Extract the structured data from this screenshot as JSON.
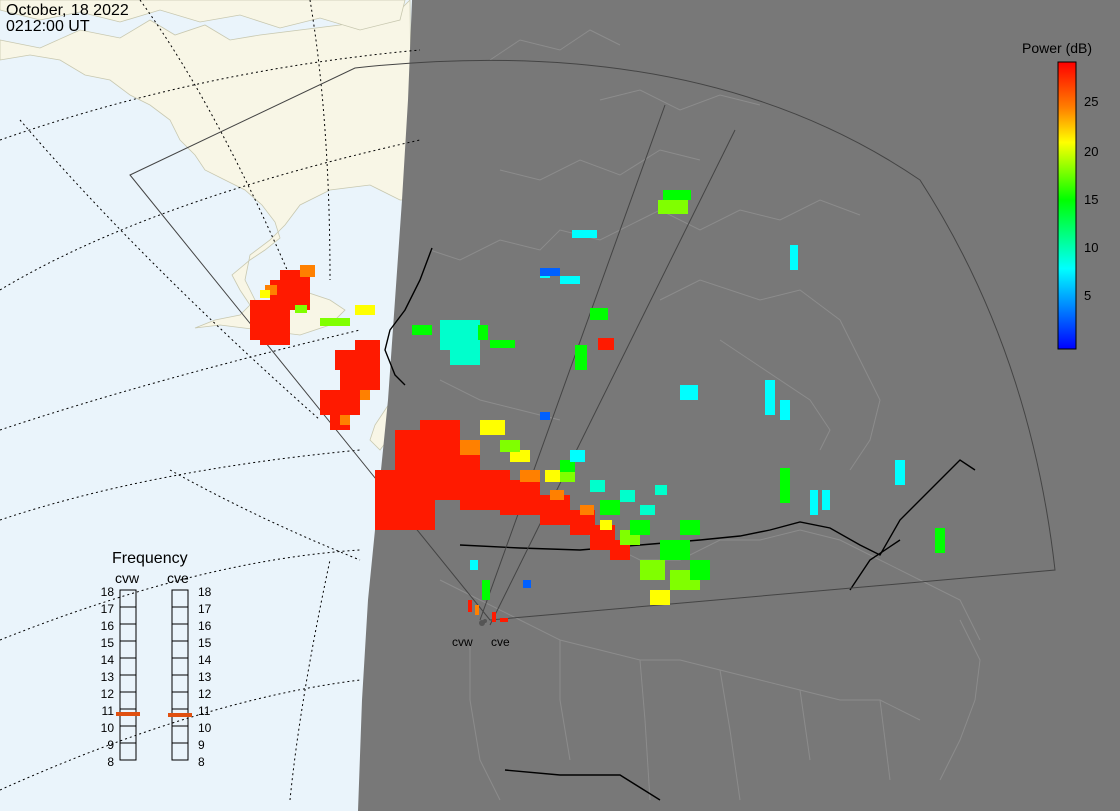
{
  "header": {
    "date": "October, 18 2022",
    "time": "0212:00 UT"
  },
  "colorbar": {
    "title": "Power (dB)",
    "ticks": [
      "25",
      "20",
      "15",
      "10",
      "5"
    ],
    "colors": [
      "#0000ff",
      "#0080ff",
      "#00ffff",
      "#00ff80",
      "#00ff00",
      "#80ff00",
      "#ffff00",
      "#ff8000",
      "#ff0000"
    ]
  },
  "frequency": {
    "title": "Frequency",
    "radars": [
      {
        "name": "cvw",
        "selected": "11"
      },
      {
        "name": "cve",
        "selected": "11"
      }
    ],
    "scale": [
      "18",
      "17",
      "16",
      "15",
      "14",
      "13",
      "12",
      "11",
      "10",
      "9",
      "8"
    ],
    "indicator_color": "#e05010"
  },
  "map": {
    "colors": {
      "ocean": "#eaf4fb",
      "land": "#f8f6e6",
      "night": "#787878",
      "borders": "#000000",
      "grid": "#000000"
    },
    "radar_sites": [
      "cvw",
      "cve"
    ]
  }
}
